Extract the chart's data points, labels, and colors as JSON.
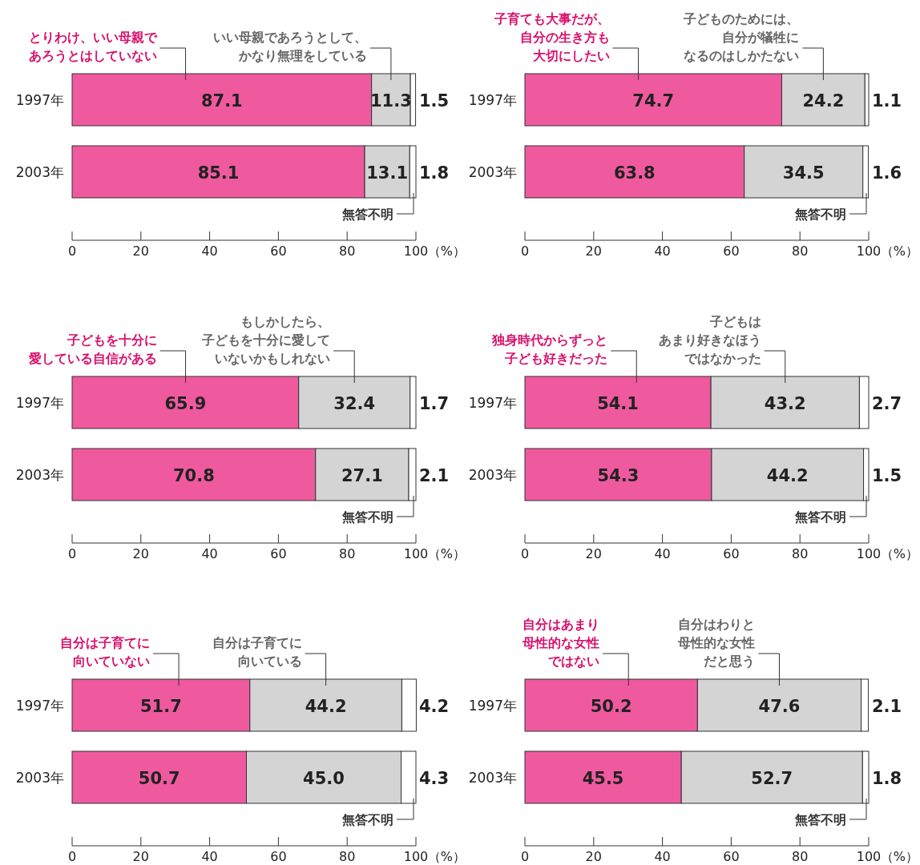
{
  "chart_data": [
    {
      "type": "bar",
      "orientation": "horizontal",
      "stacked": true,
      "data_labels": true,
      "legend": false,
      "categories": [
        "1997年",
        "2003年"
      ],
      "xlim": [
        0,
        100
      ],
      "xticks": [
        0,
        20,
        40,
        60,
        80,
        100
      ],
      "xlabel": "（%）",
      "series": [
        {
          "name": "とりわけ、いい母親であろうとはしていない",
          "color": "#ef5a9f",
          "values": [
            87.1,
            85.1
          ]
        },
        {
          "name": "いい母親であろうとして、かなり無理をしている",
          "color": "#d4d4d4",
          "values": [
            11.3,
            13.1
          ]
        },
        {
          "name": "無答不明",
          "color": "#ffffff",
          "values": [
            1.5,
            1.8
          ]
        }
      ]
    },
    {
      "type": "bar",
      "orientation": "horizontal",
      "stacked": true,
      "data_labels": true,
      "legend": false,
      "categories": [
        "1997年",
        "2003年"
      ],
      "xlim": [
        0,
        100
      ],
      "xticks": [
        0,
        20,
        40,
        60,
        80,
        100
      ],
      "xlabel": "（%）",
      "series": [
        {
          "name": "子育ても大事だが、自分の生き方も大切にしたい",
          "color": "#ef5a9f",
          "values": [
            74.7,
            63.8
          ]
        },
        {
          "name": "子どものためには、自分が犠牲になるのはしかたない",
          "color": "#d4d4d4",
          "values": [
            24.2,
            34.5
          ]
        },
        {
          "name": "無答不明",
          "color": "#ffffff",
          "values": [
            1.1,
            1.6
          ]
        }
      ]
    },
    {
      "type": "bar",
      "orientation": "horizontal",
      "stacked": true,
      "data_labels": true,
      "legend": false,
      "categories": [
        "1997年",
        "2003年"
      ],
      "xlim": [
        0,
        100
      ],
      "xticks": [
        0,
        20,
        40,
        60,
        80,
        100
      ],
      "xlabel": "（%）",
      "series": [
        {
          "name": "子どもを十分に愛している自信がある",
          "color": "#ef5a9f",
          "values": [
            65.9,
            70.8
          ]
        },
        {
          "name": "もしかしたら、子どもを十分に愛していないかもしれない",
          "color": "#d4d4d4",
          "values": [
            32.4,
            27.1
          ]
        },
        {
          "name": "無答不明",
          "color": "#ffffff",
          "values": [
            1.7,
            2.1
          ]
        }
      ]
    },
    {
      "type": "bar",
      "orientation": "horizontal",
      "stacked": true,
      "data_labels": true,
      "legend": false,
      "categories": [
        "1997年",
        "2003年"
      ],
      "xlim": [
        0,
        100
      ],
      "xticks": [
        0,
        20,
        40,
        60,
        80,
        100
      ],
      "xlabel": "（%）",
      "series": [
        {
          "name": "独身時代からずっと子ども好きだった",
          "color": "#ef5a9f",
          "values": [
            54.1,
            54.3
          ]
        },
        {
          "name": "子どもはあまり好きなほうではなかった",
          "color": "#d4d4d4",
          "values": [
            43.2,
            44.2
          ]
        },
        {
          "name": "無答不明",
          "color": "#ffffff",
          "values": [
            2.7,
            1.5
          ]
        }
      ]
    },
    {
      "type": "bar",
      "orientation": "horizontal",
      "stacked": true,
      "data_labels": true,
      "legend": false,
      "categories": [
        "1997年",
        "2003年"
      ],
      "xlim": [
        0,
        100
      ],
      "xticks": [
        0,
        20,
        40,
        60,
        80,
        100
      ],
      "xlabel": "（%）",
      "series": [
        {
          "name": "自分は子育てに向いていない",
          "color": "#ef5a9f",
          "values": [
            51.7,
            50.7
          ]
        },
        {
          "name": "自分は子育てに向いている",
          "color": "#d4d4d4",
          "values": [
            44.2,
            45.0
          ],
          "value_labels": [
            "44.2",
            "45.0"
          ]
        },
        {
          "name": "無答不明",
          "color": "#ffffff",
          "values": [
            4.2,
            4.3
          ]
        }
      ]
    },
    {
      "type": "bar",
      "orientation": "horizontal",
      "stacked": true,
      "data_labels": true,
      "legend": false,
      "categories": [
        "1997年",
        "2003年"
      ],
      "xlim": [
        0,
        100
      ],
      "xticks": [
        0,
        20,
        40,
        60,
        80,
        100
      ],
      "xlabel": "（%）",
      "series": [
        {
          "name": "自分はあまり母性的な女性ではない",
          "color": "#ef5a9f",
          "values": [
            50.2,
            45.5
          ]
        },
        {
          "name": "自分はわりと母性的な女性だと思う",
          "color": "#d4d4d4",
          "values": [
            47.6,
            52.7
          ]
        },
        {
          "name": "無答不明",
          "color": "#ffffff",
          "values": [
            2.1,
            1.8
          ]
        }
      ]
    }
  ]
}
